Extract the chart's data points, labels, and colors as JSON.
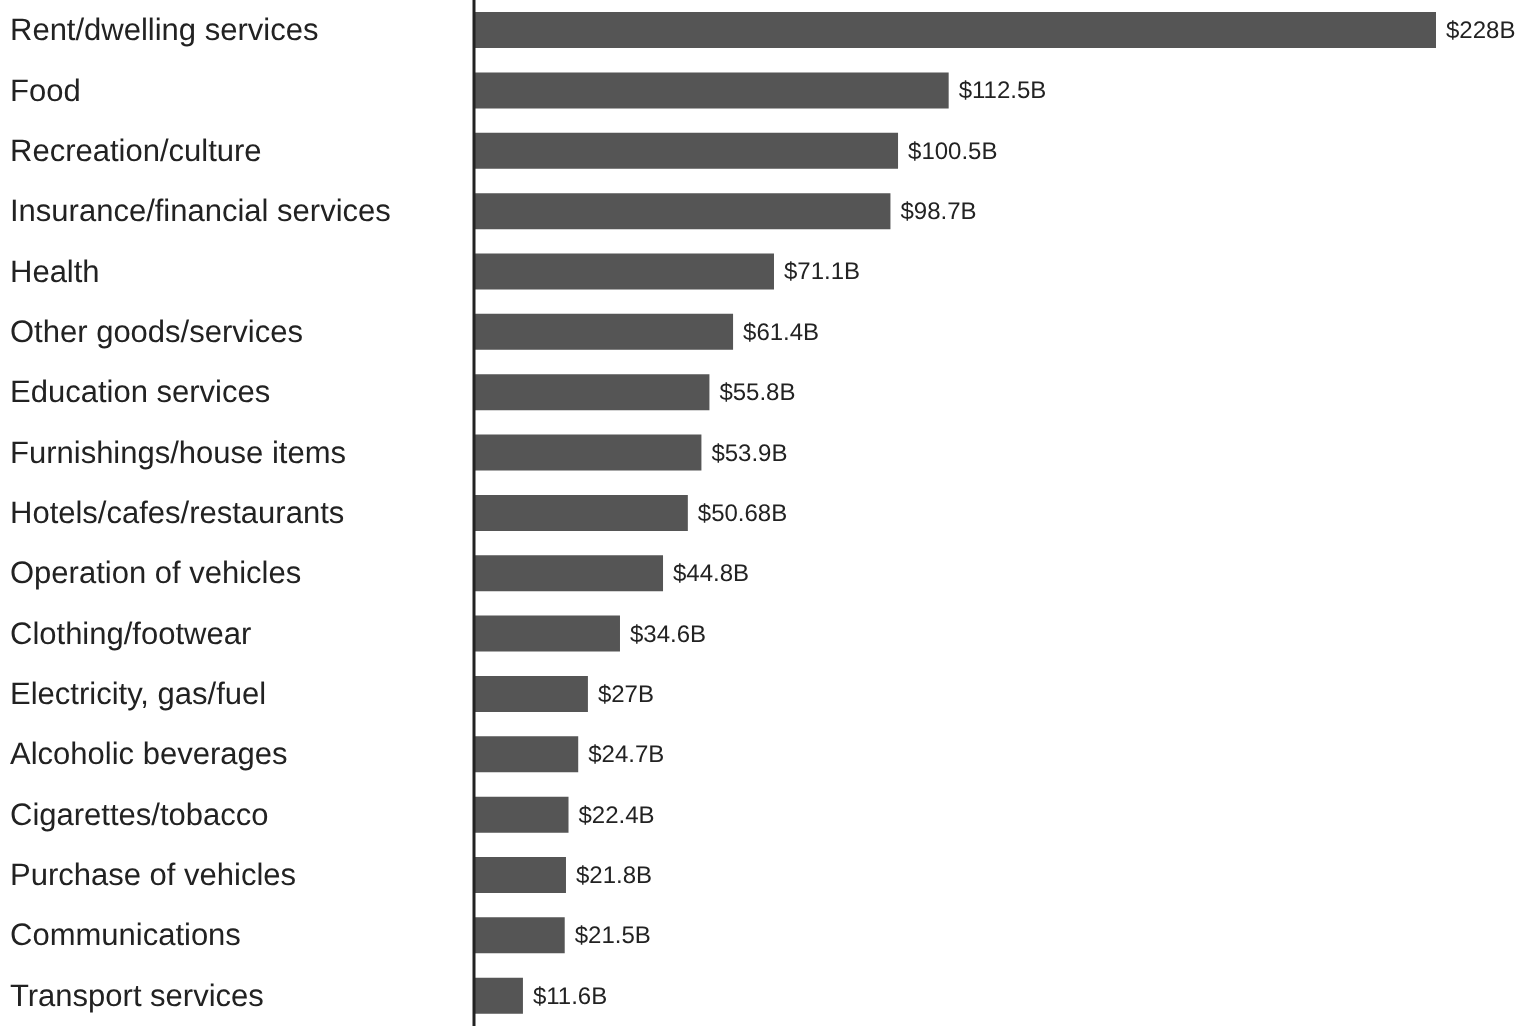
{
  "chart_data": {
    "type": "bar",
    "orientation": "horizontal",
    "categories": [
      "Rent/dwelling services",
      "Food",
      "Recreation/culture",
      "Insurance/financial services",
      "Health",
      "Other goods/services",
      "Education services",
      "Furnishings/house items",
      "Hotels/cafes/restaurants",
      "Operation of vehicles",
      "Clothing/footwear",
      "Electricity, gas/fuel",
      "Alcoholic beverages",
      "Cigarettes/tobacco",
      "Purchase of vehicles",
      "Communications",
      "Transport services"
    ],
    "values": [
      228,
      112.5,
      100.5,
      98.7,
      71.1,
      61.4,
      55.8,
      53.9,
      50.68,
      44.8,
      34.6,
      27,
      24.7,
      22.4,
      21.8,
      21.5,
      11.6
    ],
    "value_labels": [
      "$228B",
      "$112.5B",
      "$100.5B",
      "$98.7B",
      "$71.1B",
      "$61.4B",
      "$55.8B",
      "$53.9B",
      "$50.68B",
      "$44.8B",
      "$34.6B",
      "$27B",
      "$24.7B",
      "$22.4B",
      "$21.8B",
      "$21.5B",
      "$11.6B"
    ],
    "color": "#555555"
  }
}
